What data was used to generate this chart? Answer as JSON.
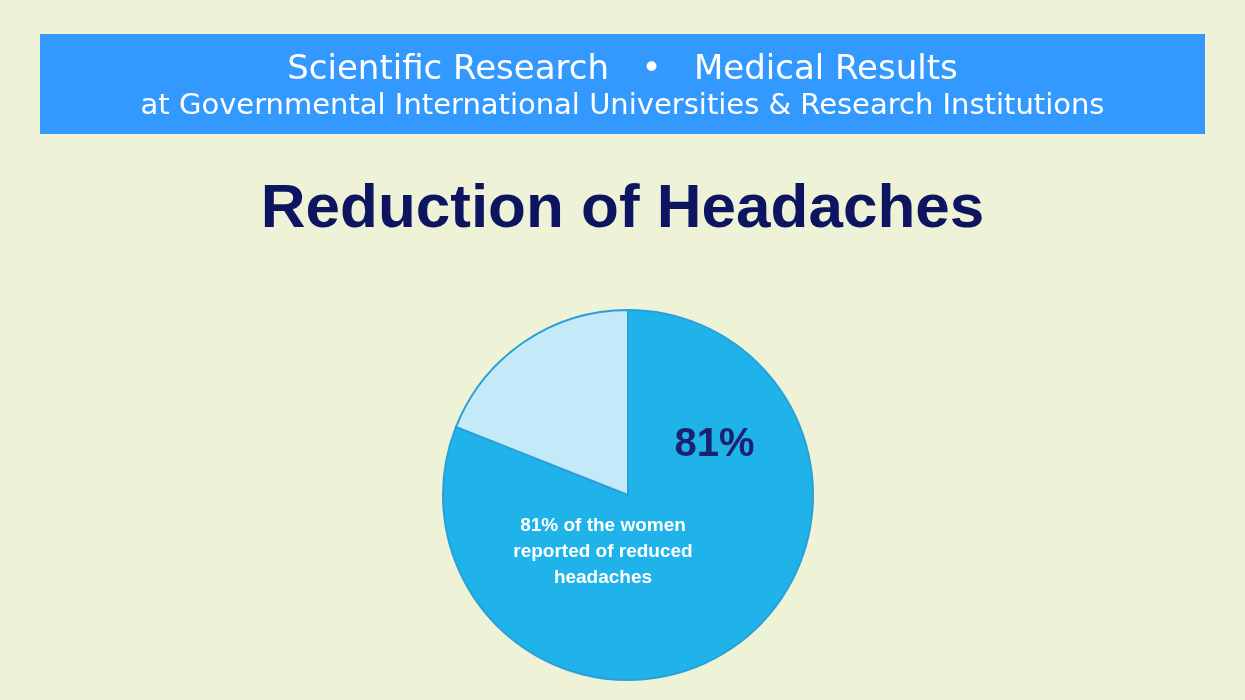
{
  "chart_data": {
    "type": "pie",
    "title": "Reduction of Headaches",
    "categories": [
      null,
      null
    ],
    "values": [
      81,
      19
    ],
    "colors": [
      "#1fb3ea",
      "#c4e9f8"
    ],
    "value_labels": [
      "81%",
      null
    ],
    "legend": false,
    "annotations": [
      "Scientific Research   •   Medical Results",
      "at Governmental International Universities & Research Institutions",
      "81% of the women reported of reduced headaches"
    ]
  }
}
